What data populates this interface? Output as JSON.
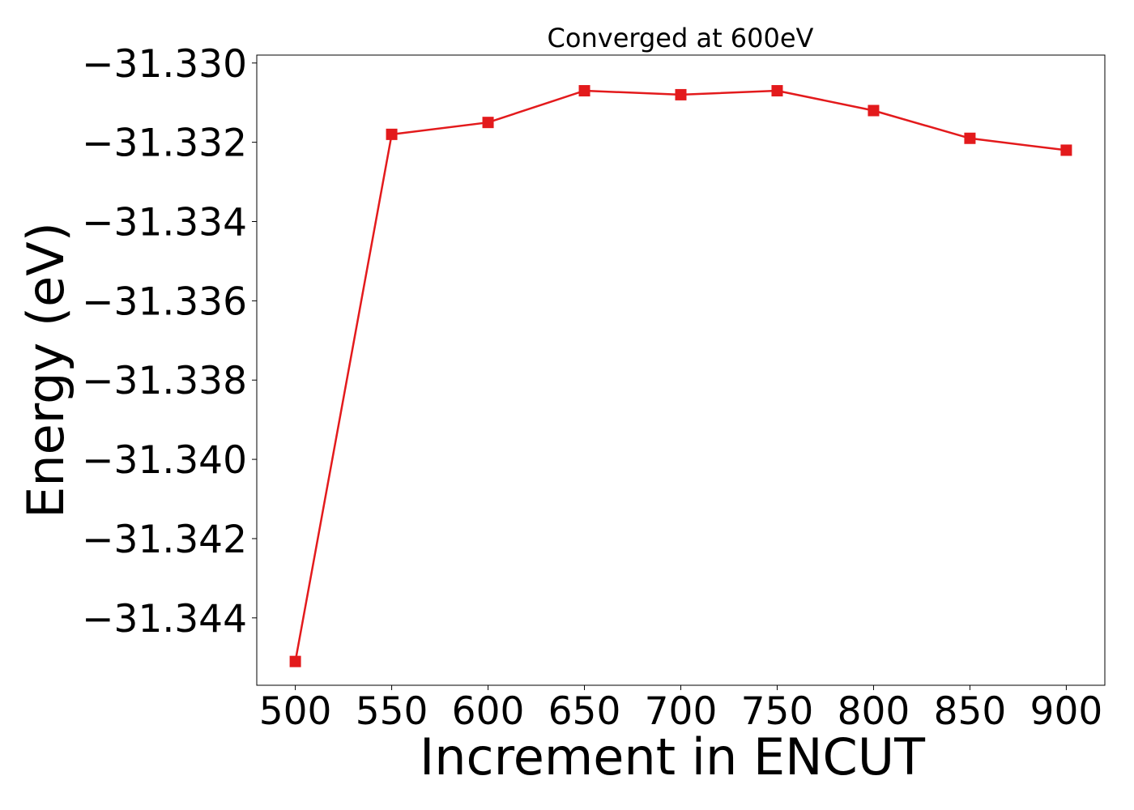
{
  "chart_data": {
    "type": "line",
    "title": "Converged at 600eV",
    "xlabel": "Increment in ENCUT",
    "ylabel": "Energy (eV)",
    "x": [
      500,
      550,
      600,
      650,
      700,
      750,
      800,
      850,
      900
    ],
    "series": [
      {
        "values": [
          -31.3451,
          -31.3318,
          -31.3315,
          -31.3307,
          -31.3308,
          -31.3307,
          -31.3312,
          -31.3319,
          -31.3322
        ],
        "color": "#e31a1c",
        "marker": "square"
      }
    ],
    "xticks": [
      500,
      550,
      600,
      650,
      700,
      750,
      800,
      850,
      900
    ],
    "xtick_labels": [
      "500",
      "550",
      "600",
      "650",
      "700",
      "750",
      "800",
      "850",
      "900"
    ],
    "yticks": [
      -31.33,
      -31.332,
      -31.334,
      -31.336,
      -31.338,
      -31.34,
      -31.342,
      -31.344
    ],
    "ytick_labels": [
      "−31.330",
      "−31.332",
      "−31.334",
      "−31.336",
      "−31.338",
      "−31.340",
      "−31.342",
      "−31.344"
    ],
    "xlim": [
      480,
      920
    ],
    "ylim": [
      -31.3457,
      -31.3298
    ],
    "grid": false,
    "legend": "none"
  }
}
